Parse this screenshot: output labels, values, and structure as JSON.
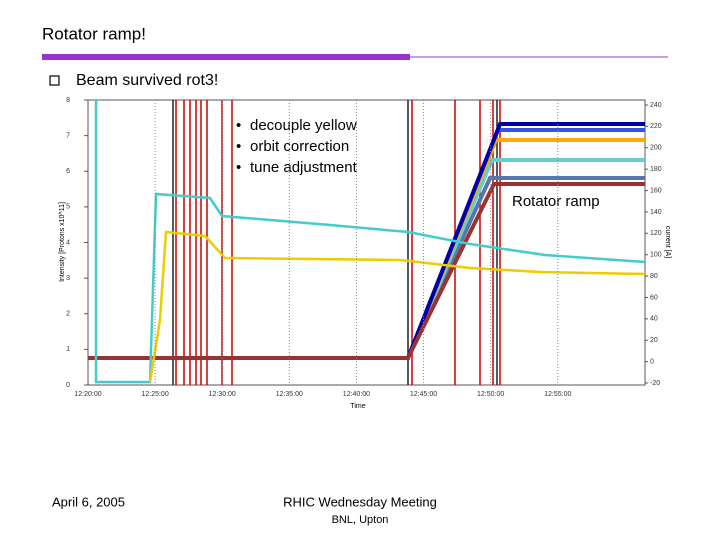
{
  "slide": {
    "title": "Rotator ramp!",
    "bullets": [
      "Beam survived rot3!"
    ],
    "footer": {
      "date": "April 6, 2005",
      "meeting": "RHIC Wednesday Meeting",
      "location": "BNL, Upton"
    }
  },
  "plot": {
    "notes": [
      "decouple yellow",
      "orbit correction",
      "tune adjustment"
    ],
    "callout": "Rotator ramp",
    "y_label": "Intensity [Protons x10^11]",
    "y2_label": "current [A]",
    "x_label": "Time",
    "yticks": [
      0,
      1,
      2,
      3,
      4,
      5,
      6,
      7,
      8
    ],
    "y2ticks": [
      -20,
      0,
      20,
      40,
      60,
      80,
      100,
      120,
      140,
      160,
      180,
      200,
      220,
      240
    ],
    "xticks": [
      "12:20:00",
      "12:25:00",
      "12:30:00",
      "12:35:00",
      "12:40:00",
      "12:45:00",
      "12:50:00",
      "12:55:00"
    ]
  }
}
